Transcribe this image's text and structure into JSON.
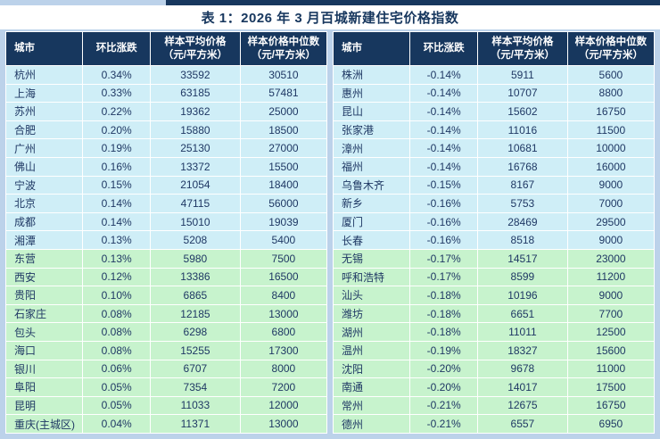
{
  "title": "表 1：2026 年 3 月百城新建住宅价格指数",
  "columns": {
    "city": "城市",
    "change": "环比涨跌",
    "avg_price_line1": "样本平均价格",
    "avg_price_line2": "（元/平方米）",
    "median_price_line1": "样本价格中位数",
    "median_price_line2": "（元/平方米）"
  },
  "colors": {
    "header_navy": "#17375E",
    "text_navy": "#1F3864",
    "row_cyan": "#CFEEF7",
    "row_green": "#C7F3CD",
    "page_blue": "#BCD2EA"
  },
  "highlight": {
    "green_start_index": 10
  },
  "left_table": {
    "rows": [
      [
        "杭州",
        "0.34%",
        "33592",
        "30510"
      ],
      [
        "上海",
        "0.33%",
        "63185",
        "57481"
      ],
      [
        "苏州",
        "0.22%",
        "19362",
        "25000"
      ],
      [
        "合肥",
        "0.20%",
        "15880",
        "18500"
      ],
      [
        "广州",
        "0.19%",
        "25130",
        "27000"
      ],
      [
        "佛山",
        "0.16%",
        "13372",
        "15500"
      ],
      [
        "宁波",
        "0.15%",
        "21054",
        "18400"
      ],
      [
        "北京",
        "0.14%",
        "47115",
        "56000"
      ],
      [
        "成都",
        "0.14%",
        "15010",
        "19039"
      ],
      [
        "湘潭",
        "0.13%",
        "5208",
        "5400"
      ],
      [
        "东营",
        "0.13%",
        "5980",
        "7500"
      ],
      [
        "西安",
        "0.12%",
        "13386",
        "16500"
      ],
      [
        "贵阳",
        "0.10%",
        "6865",
        "8400"
      ],
      [
        "石家庄",
        "0.08%",
        "12185",
        "13000"
      ],
      [
        "包头",
        "0.08%",
        "6298",
        "6800"
      ],
      [
        "海口",
        "0.08%",
        "15255",
        "17300"
      ],
      [
        "银川",
        "0.06%",
        "6707",
        "8000"
      ],
      [
        "阜阳",
        "0.05%",
        "7354",
        "7200"
      ],
      [
        "昆明",
        "0.05%",
        "11033",
        "12000"
      ],
      [
        "重庆(主城区)",
        "0.04%",
        "11371",
        "13000"
      ]
    ]
  },
  "right_table": {
    "rows": [
      [
        "株洲",
        "-0.14%",
        "5911",
        "5600"
      ],
      [
        "惠州",
        "-0.14%",
        "10707",
        "8800"
      ],
      [
        "昆山",
        "-0.14%",
        "15602",
        "16750"
      ],
      [
        "张家港",
        "-0.14%",
        "11016",
        "11500"
      ],
      [
        "漳州",
        "-0.14%",
        "10681",
        "10000"
      ],
      [
        "福州",
        "-0.14%",
        "16768",
        "16000"
      ],
      [
        "乌鲁木齐",
        "-0.15%",
        "8167",
        "9000"
      ],
      [
        "新乡",
        "-0.16%",
        "5753",
        "7000"
      ],
      [
        "厦门",
        "-0.16%",
        "28469",
        "29500"
      ],
      [
        "长春",
        "-0.16%",
        "8518",
        "9000"
      ],
      [
        "无锡",
        "-0.17%",
        "14517",
        "23000"
      ],
      [
        "呼和浩特",
        "-0.17%",
        "8599",
        "11200"
      ],
      [
        "汕头",
        "-0.18%",
        "10196",
        "9000"
      ],
      [
        "潍坊",
        "-0.18%",
        "6651",
        "7700"
      ],
      [
        "湖州",
        "-0.18%",
        "11011",
        "12500"
      ],
      [
        "温州",
        "-0.19%",
        "18327",
        "15600"
      ],
      [
        "沈阳",
        "-0.20%",
        "9678",
        "11000"
      ],
      [
        "南通",
        "-0.20%",
        "14017",
        "17500"
      ],
      [
        "常州",
        "-0.21%",
        "12675",
        "16750"
      ],
      [
        "德州",
        "-0.21%",
        "6557",
        "6950"
      ]
    ]
  }
}
